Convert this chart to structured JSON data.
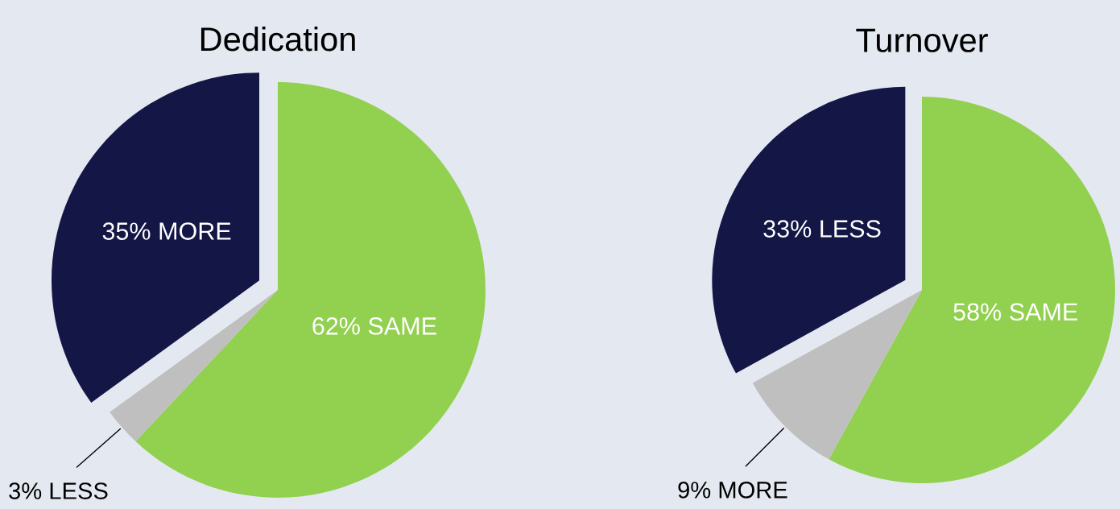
{
  "chart_data": [
    {
      "type": "pie",
      "title": "Dedication",
      "categories": [
        "62% SAME",
        "3% LESS",
        "35% MORE"
      ],
      "values": [
        62,
        3,
        35
      ],
      "colors": [
        "#92d050",
        "#bfbfbf",
        "#141646"
      ]
    },
    {
      "type": "pie",
      "title": "Turnover",
      "categories": [
        "58% SAME",
        "9% MORE",
        "33% LESS"
      ],
      "values": [
        58,
        9,
        33
      ],
      "colors": [
        "#92d050",
        "#bfbfbf",
        "#141646"
      ]
    }
  ]
}
